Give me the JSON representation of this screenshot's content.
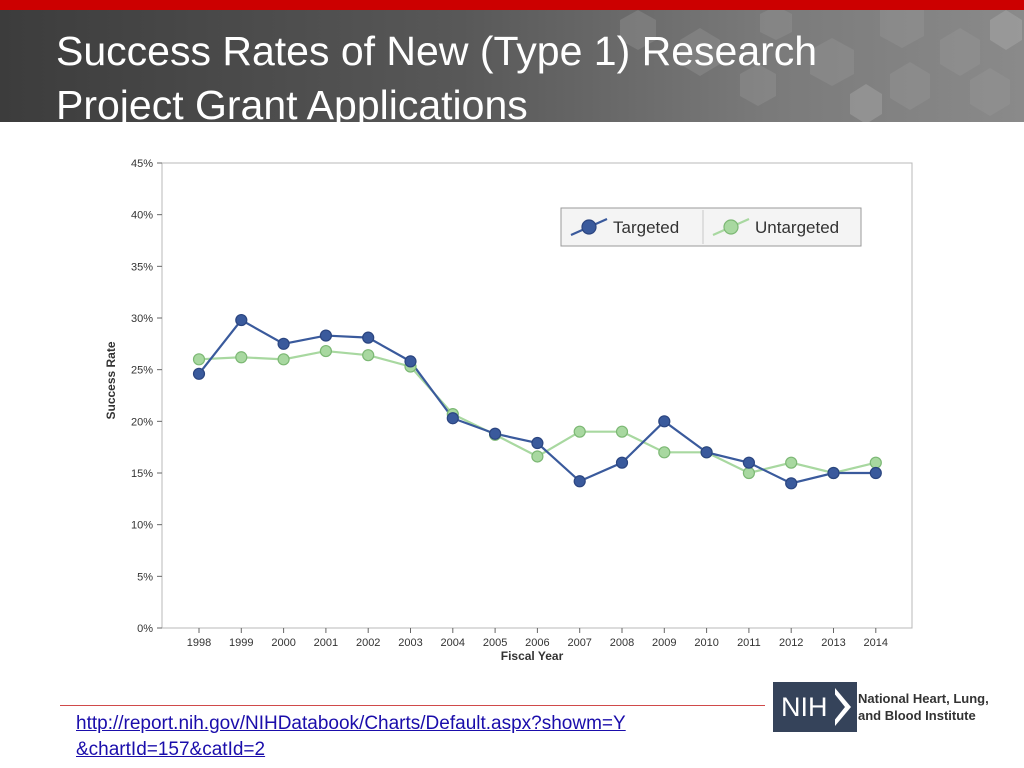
{
  "slide": {
    "title_line1": "Success Rates of New (Type 1) Research",
    "title_line2": "Project Grant Applications",
    "url_line1": "http://report.nih.gov/NIHDatabook/Charts/Default.aspx?showm=Y",
    "url_line2": "&chartId=157&catId=2"
  },
  "logo": {
    "mark": "NIH",
    "institute_line1": "National Heart, Lung,",
    "institute_line2": "and Blood Institute"
  },
  "colors": {
    "title_bar_red": "#cc0000",
    "targeted": "#3a5a9c",
    "untargeted": "#a8d8a0",
    "link": "#1a0dab"
  },
  "chart_data": {
    "type": "line",
    "title": "",
    "xlabel": "Fiscal Year",
    "ylabel": "Success Rate",
    "categories": [
      "1998",
      "1999",
      "2000",
      "2001",
      "2002",
      "2003",
      "2004",
      "2005",
      "2006",
      "2007",
      "2008",
      "2009",
      "2010",
      "2011",
      "2012",
      "2013",
      "2014"
    ],
    "ylim": [
      0,
      45
    ],
    "yticks": [
      "0%",
      "5%",
      "10%",
      "15%",
      "20%",
      "25%",
      "30%",
      "35%",
      "40%",
      "45%"
    ],
    "ytick_values": [
      0,
      5,
      10,
      15,
      20,
      25,
      30,
      35,
      40,
      45
    ],
    "grid": false,
    "legend_position": "top-right",
    "series": [
      {
        "name": "Targeted",
        "values": [
          24.6,
          29.8,
          27.5,
          28.3,
          28.1,
          25.8,
          20.3,
          18.8,
          17.9,
          14.2,
          16.0,
          20.0,
          17.0,
          16.0,
          14.0,
          15.0,
          15.0
        ]
      },
      {
        "name": "Untargeted",
        "values": [
          26.0,
          26.2,
          26.0,
          26.8,
          26.4,
          25.3,
          20.7,
          18.7,
          16.6,
          19.0,
          19.0,
          17.0,
          17.0,
          15.0,
          16.0,
          15.0,
          16.0
        ]
      }
    ]
  }
}
